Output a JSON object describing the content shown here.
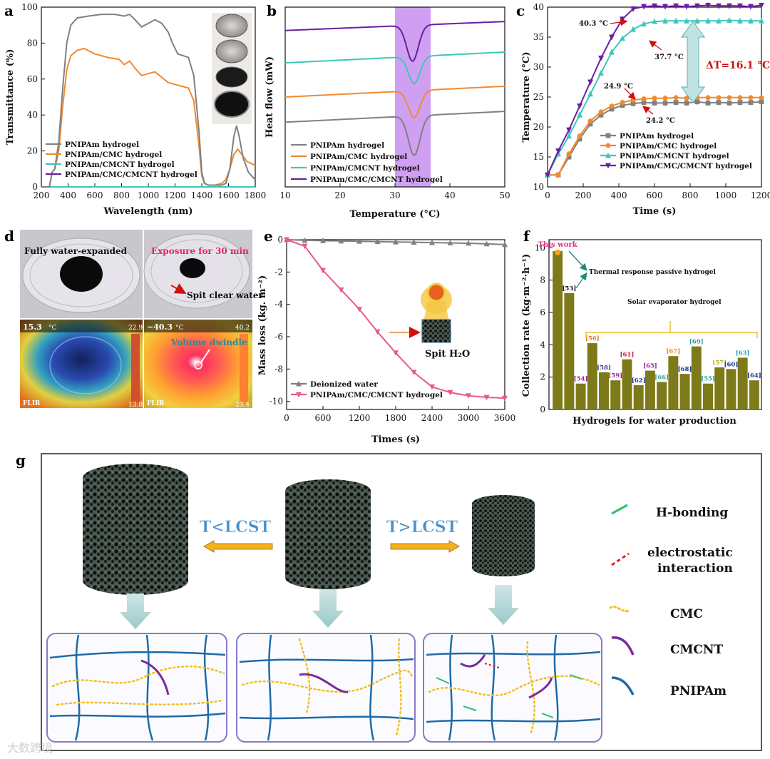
{
  "panels": {
    "a": "a",
    "b": "b",
    "c": "c",
    "d": "d",
    "e": "e",
    "f": "f",
    "g": "g"
  },
  "colors": {
    "pnipam": "#808080",
    "cmc": "#f28a30",
    "cmcnt": "#3cc7b8",
    "full": "#6a1fa0",
    "pink": "#e85a8c",
    "olive": "#7d7a19",
    "lavender": "#c78ef0",
    "gold": "#f0c020"
  },
  "chart_data": [
    {
      "id": "a",
      "type": "line",
      "xlabel": "Wavelength (nm)",
      "ylabel": "Transmittance (%)",
      "xlim": [
        200,
        1800
      ],
      "ylim": [
        0,
        100
      ],
      "xticks": [
        200,
        400,
        600,
        800,
        1000,
        1200,
        1400,
        1600,
        1800
      ],
      "yticks": [
        0,
        20,
        40,
        60,
        80,
        100
      ],
      "legend_position": "bottom-left",
      "series": [
        {
          "name": "PNIPAm hydrogel",
          "color": "#808080",
          "points": [
            [
              200,
              0
            ],
            [
              260,
              0
            ],
            [
              280,
              8
            ],
            [
              300,
              10
            ],
            [
              330,
              25
            ],
            [
              360,
              55
            ],
            [
              390,
              80
            ],
            [
              420,
              90
            ],
            [
              470,
              94
            ],
            [
              550,
              95
            ],
            [
              650,
              96
            ],
            [
              750,
              96
            ],
            [
              820,
              95
            ],
            [
              860,
              96
            ],
            [
              900,
              93
            ],
            [
              950,
              89
            ],
            [
              1000,
              91
            ],
            [
              1050,
              93
            ],
            [
              1100,
              91
            ],
            [
              1150,
              86
            ],
            [
              1180,
              80
            ],
            [
              1220,
              74
            ],
            [
              1260,
              73
            ],
            [
              1300,
              72
            ],
            [
              1340,
              62
            ],
            [
              1380,
              30
            ],
            [
              1400,
              8
            ],
            [
              1420,
              2
            ],
            [
              1450,
              1
            ],
            [
              1500,
              1
            ],
            [
              1550,
              1
            ],
            [
              1580,
              2
            ],
            [
              1610,
              10
            ],
            [
              1640,
              28
            ],
            [
              1660,
              34
            ],
            [
              1680,
              28
            ],
            [
              1710,
              16
            ],
            [
              1750,
              8
            ],
            [
              1800,
              4
            ]
          ]
        },
        {
          "name": "PNIPAm/CMC hydrogel",
          "color": "#f28a30",
          "points": [
            [
              200,
              0
            ],
            [
              260,
              0
            ],
            [
              280,
              8
            ],
            [
              300,
              10
            ],
            [
              330,
              20
            ],
            [
              360,
              45
            ],
            [
              390,
              65
            ],
            [
              420,
              73
            ],
            [
              470,
              76
            ],
            [
              520,
              77
            ],
            [
              600,
              74
            ],
            [
              700,
              72
            ],
            [
              780,
              71
            ],
            [
              820,
              68
            ],
            [
              860,
              70
            ],
            [
              900,
              66
            ],
            [
              950,
              62
            ],
            [
              1000,
              63
            ],
            [
              1050,
              64
            ],
            [
              1100,
              61
            ],
            [
              1150,
              58
            ],
            [
              1200,
              57
            ],
            [
              1250,
              56
            ],
            [
              1300,
              55
            ],
            [
              1340,
              48
            ],
            [
              1380,
              22
            ],
            [
              1400,
              6
            ],
            [
              1420,
              2
            ],
            [
              1450,
              1
            ],
            [
              1500,
              1
            ],
            [
              1550,
              2
            ],
            [
              1580,
              4
            ],
            [
              1610,
              10
            ],
            [
              1640,
              18
            ],
            [
              1670,
              21
            ],
            [
              1700,
              18
            ],
            [
              1740,
              14
            ],
            [
              1800,
              12
            ]
          ]
        },
        {
          "name": "PNIPAm/CMCNT hydrogel",
          "color": "#3cc7b8",
          "points": [
            [
              200,
              0
            ],
            [
              1800,
              0
            ]
          ]
        },
        {
          "name": "PNIPAm/CMC/CMCNT hydrogel",
          "color": "#6a1fa0",
          "points": [
            [
              200,
              0
            ],
            [
              1800,
              0
            ]
          ]
        }
      ]
    },
    {
      "id": "b",
      "type": "line",
      "xlabel": "Temperature (°C)",
      "ylabel": "Heat flow (mW)",
      "xlim": [
        10,
        50
      ],
      "xticks": [
        10,
        20,
        30,
        40,
        50
      ],
      "highlight_x": [
        30,
        36.5
      ],
      "legend_position": "bottom-left",
      "series": [
        {
          "name": "PNIPAm hydrogel",
          "color": "#808080",
          "baseline_start": 0.36,
          "baseline_end": 0.42,
          "dip_center": 33.5,
          "dip_depth": 0.22,
          "dip_width": 1.5
        },
        {
          "name": "PNIPAm/CMC hydrogel",
          "color": "#f28a30",
          "baseline_start": 0.5,
          "baseline_end": 0.56,
          "dip_center": 33.5,
          "dip_depth": 0.15,
          "dip_width": 1.5
        },
        {
          "name": "PNIPAm/CMCNT hydrogel",
          "color": "#3cc7b8",
          "baseline_start": 0.69,
          "baseline_end": 0.75,
          "dip_center": 33.5,
          "dip_depth": 0.15,
          "dip_width": 1.5
        },
        {
          "name": "PNIPAm/CMC/CMCNT hydrogel",
          "color": "#6a1fa0",
          "baseline_start": 0.87,
          "baseline_end": 0.92,
          "dip_center": 33.2,
          "dip_depth": 0.2,
          "dip_width": 1.5
        }
      ]
    },
    {
      "id": "c",
      "type": "line",
      "xlabel": "Time (s)",
      "ylabel": "Temperature (°C)",
      "xlim": [
        0,
        1200
      ],
      "ylim": [
        10,
        40
      ],
      "xticks": [
        0,
        200,
        400,
        600,
        800,
        1000,
        1200
      ],
      "yticks": [
        10,
        15,
        20,
        25,
        30,
        35,
        40
      ],
      "legend_position": "bottom-right",
      "annotations": [
        "40.3 °C",
        "37.7 °C",
        "24.9 °C",
        "24.2 °C",
        "ΔT=16.1 °C"
      ],
      "series": [
        {
          "name": "PNIPAm hydrogel",
          "color": "#808080",
          "marker": "square",
          "points": [
            [
              0,
              12
            ],
            [
              60,
              12
            ],
            [
              120,
              15
            ],
            [
              180,
              18
            ],
            [
              240,
              20.5
            ],
            [
              300,
              22
            ],
            [
              360,
              23
            ],
            [
              420,
              23.6
            ],
            [
              480,
              23.9
            ],
            [
              540,
              24.1
            ],
            [
              600,
              24
            ],
            [
              660,
              24
            ],
            [
              720,
              24.1
            ],
            [
              780,
              24
            ],
            [
              840,
              24.2
            ],
            [
              900,
              24
            ],
            [
              960,
              24.1
            ],
            [
              1020,
              24
            ],
            [
              1080,
              24.1
            ],
            [
              1140,
              24.1
            ],
            [
              1200,
              24.2
            ]
          ]
        },
        {
          "name": "PNIPAm/CMC hydrogel",
          "color": "#f28a30",
          "marker": "circle",
          "points": [
            [
              0,
              12
            ],
            [
              60,
              12
            ],
            [
              120,
              15.5
            ],
            [
              180,
              18.5
            ],
            [
              240,
              21
            ],
            [
              300,
              22.5
            ],
            [
              360,
              23.5
            ],
            [
              420,
              24.1
            ],
            [
              480,
              24.5
            ],
            [
              540,
              24.7
            ],
            [
              600,
              24.8
            ],
            [
              660,
              24.8
            ],
            [
              720,
              24.9
            ],
            [
              780,
              24.8
            ],
            [
              840,
              24.9
            ],
            [
              900,
              24.9
            ],
            [
              960,
              24.9
            ],
            [
              1020,
              24.9
            ],
            [
              1080,
              24.9
            ],
            [
              1140,
              24.9
            ],
            [
              1200,
              24.9
            ]
          ]
        },
        {
          "name": "PNIPAm/CMCNT hydrogel",
          "color": "#3cc7b8",
          "marker": "triangle-up",
          "points": [
            [
              0,
              12
            ],
            [
              60,
              15.5
            ],
            [
              120,
              18.5
            ],
            [
              180,
              22
            ],
            [
              240,
              25.5
            ],
            [
              300,
              29
            ],
            [
              360,
              32.5
            ],
            [
              420,
              34.8
            ],
            [
              480,
              36.3
            ],
            [
              540,
              37.2
            ],
            [
              600,
              37.6
            ],
            [
              660,
              37.7
            ],
            [
              720,
              37.7
            ],
            [
              780,
              37.7
            ],
            [
              840,
              37.7
            ],
            [
              900,
              37.7
            ],
            [
              960,
              37.7
            ],
            [
              1020,
              37.8
            ],
            [
              1080,
              37.7
            ],
            [
              1140,
              37.7
            ],
            [
              1200,
              37.7
            ]
          ]
        },
        {
          "name": "PNIPAm/CMC/CMCNT hydrogel",
          "color": "#6a1fa0",
          "marker": "triangle-down",
          "points": [
            [
              0,
              12
            ],
            [
              60,
              16
            ],
            [
              120,
              19.5
            ],
            [
              180,
              23.5
            ],
            [
              240,
              27.5
            ],
            [
              300,
              31.5
            ],
            [
              360,
              35
            ],
            [
              420,
              38
            ],
            [
              480,
              39.7
            ],
            [
              540,
              40.1
            ],
            [
              600,
              40.2
            ],
            [
              660,
              40.1
            ],
            [
              720,
              40.2
            ],
            [
              780,
              40.1
            ],
            [
              840,
              40.2
            ],
            [
              900,
              40.3
            ],
            [
              960,
              40.2
            ],
            [
              1020,
              40.2
            ],
            [
              1080,
              40.2
            ],
            [
              1140,
              40.1
            ],
            [
              1200,
              40.3
            ]
          ]
        }
      ]
    },
    {
      "id": "e",
      "type": "line",
      "xlabel": "Times (s)",
      "ylabel": "Mass loss (kg. m⁻²)",
      "xlim": [
        0,
        3600
      ],
      "ylim": [
        -10.5,
        0
      ],
      "xticks": [
        0,
        600,
        1200,
        1800,
        2400,
        3000,
        3600
      ],
      "yticks": [
        0,
        -2,
        -4,
        -6,
        -8,
        -10
      ],
      "legend_position": "bottom-left",
      "inset_label": "Spit H₂O",
      "series": [
        {
          "name": "Deionized water",
          "color": "#808080",
          "marker": "triangle-up",
          "points": [
            [
              0,
              0
            ],
            [
              300,
              -0.04
            ],
            [
              600,
              -0.06
            ],
            [
              900,
              -0.08
            ],
            [
              1200,
              -0.1
            ],
            [
              1500,
              -0.12
            ],
            [
              1800,
              -0.14
            ],
            [
              2100,
              -0.16
            ],
            [
              2400,
              -0.18
            ],
            [
              2700,
              -0.2
            ],
            [
              3000,
              -0.22
            ],
            [
              3300,
              -0.26
            ],
            [
              3600,
              -0.3
            ]
          ]
        },
        {
          "name": "PNIPAm/CMC/CMCNT hydrogel",
          "color": "#e85a8c",
          "marker": "triangle-down",
          "points": [
            [
              0,
              0
            ],
            [
              300,
              -0.4
            ],
            [
              600,
              -1.9
            ],
            [
              900,
              -3.1
            ],
            [
              1200,
              -4.3
            ],
            [
              1500,
              -5.7
            ],
            [
              1800,
              -7.0
            ],
            [
              2100,
              -8.2
            ],
            [
              2400,
              -9.1
            ],
            [
              2700,
              -9.45
            ],
            [
              3000,
              -9.65
            ],
            [
              3300,
              -9.75
            ],
            [
              3600,
              -9.8
            ]
          ]
        }
      ]
    },
    {
      "id": "f",
      "type": "bar",
      "xlabel": "Hydrogels for water production",
      "ylabel": "Collection rate (kg·m⁻²·h⁻¹)",
      "ylim": [
        0,
        10.5
      ],
      "yticks": [
        0,
        2,
        4,
        6,
        8,
        10
      ],
      "categories": [
        "This work",
        "[53]",
        "[54]",
        "[56]",
        "[58]",
        "[59]",
        "[61]",
        "[62]",
        "[65]",
        "[66]",
        "[67]",
        "[68]",
        "[69]",
        "[55]",
        "[57]",
        "[60]",
        "[63]",
        "[64]"
      ],
      "values": [
        9.8,
        7.2,
        1.6,
        4.1,
        2.3,
        1.8,
        3.1,
        1.5,
        2.4,
        1.7,
        3.3,
        2.2,
        3.9,
        1.6,
        2.6,
        2.5,
        3.2,
        1.8
      ],
      "label_colors": [
        "#e0308c",
        "#111111",
        "#9b2a9b",
        "#e07a20",
        "#4a3a9b",
        "#9b2a9b",
        "#c0203a",
        "#1a3a8a",
        "#9b2a9b",
        "#3aa098",
        "#e08a30",
        "#1a3a8a",
        "#20a0a8",
        "#20a0a8",
        "#b8b020",
        "#1a3a8a",
        "#20a0a8",
        "#1a3a8a"
      ],
      "annotations": [
        "Thermal response passive hydrogel",
        "Solar evaporator hydrogel"
      ]
    }
  ],
  "photos": {
    "top_left": "Fully  water-expanded",
    "top_right": "Exposure for 30 min",
    "spit": "Spit clear water",
    "ir_left_value": "15.3",
    "ir_left_max": "22.9",
    "ir_left_min": "13.8",
    "ir_right_value": "~40.3",
    "ir_right_max": "40.2",
    "ir_right_min": "23.4",
    "dwindle": "Volume dwindle",
    "unit": "°C",
    "brand": "FLIR"
  },
  "schematic": {
    "arrow_left": "T<LCST",
    "arrow_right": "T>LCST",
    "legend": [
      "H-bonding",
      "electrostatic interaction",
      "CMC",
      "CMCNT",
      "PNIPAm"
    ],
    "legend_colors": [
      "#2fbf6f",
      "#e02020",
      "#f0c020",
      "#7a2a9a",
      "#1e6aa8"
    ]
  },
  "watermark": "大数跨境"
}
